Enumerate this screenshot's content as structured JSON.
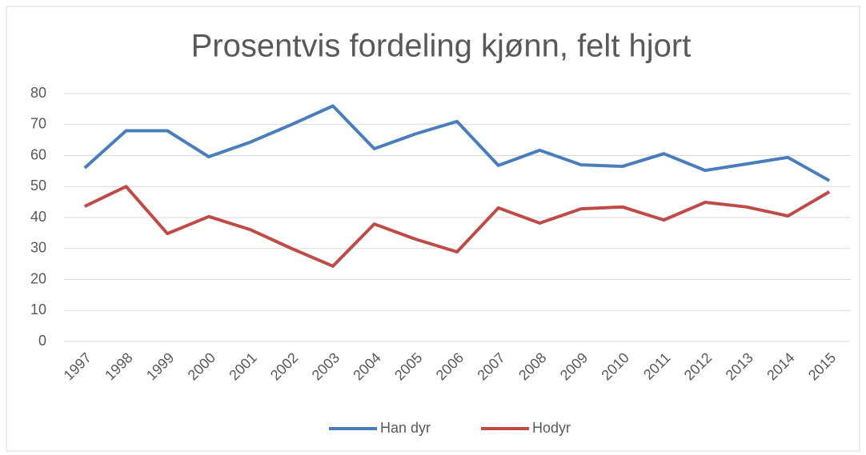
{
  "chart_data": {
    "type": "line",
    "title": "Prosentvis fordeling kjønn, felt hjort",
    "categories": [
      "1997",
      "1998",
      "1999",
      "2000",
      "2001",
      "2002",
      "2003",
      "2004",
      "2005",
      "2006",
      "2007",
      "2008",
      "2009",
      "2010",
      "2011",
      "2012",
      "2013",
      "2014",
      "2015"
    ],
    "series": [
      {
        "name": "Han dyr",
        "color": "#4a7ebb",
        "values": [
          56,
          68,
          68,
          59.6,
          64.3,
          70,
          76,
          62.2,
          67,
          71,
          56.8,
          61.7,
          57,
          56.5,
          60.6,
          55.2,
          57.3,
          59.4,
          51.9
        ]
      },
      {
        "name": "Hodyr",
        "color": "#be4b48",
        "values": [
          43.6,
          50,
          34.8,
          40.3,
          36.1,
          30,
          24.3,
          37.9,
          33,
          28.9,
          43.1,
          38.2,
          42.8,
          43.4,
          39.2,
          44.9,
          43.4,
          40.5,
          48.3
        ]
      }
    ],
    "ylim": [
      0,
      80
    ],
    "yticks": [
      0,
      10,
      20,
      30,
      40,
      50,
      60,
      70,
      80
    ],
    "grid": true,
    "legend": "bottom"
  }
}
